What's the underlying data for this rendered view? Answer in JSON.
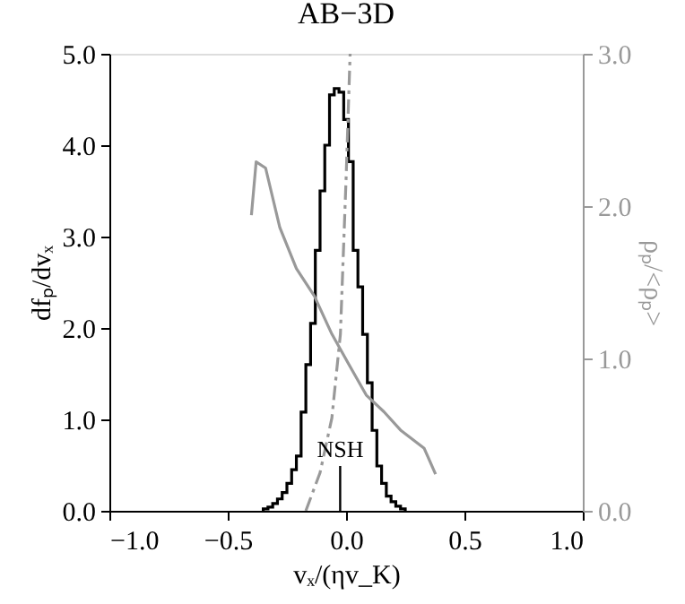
{
  "chart_data": {
    "type": "histogram",
    "title": "AB−3D",
    "xlabel": "vₓ/(ηv_K)",
    "ylabel": "dfₚ/dvₓ",
    "y2label": "ρₚ/<ρₚ>",
    "bins": [
      -0.35,
      -0.33,
      -0.31,
      -0.29,
      -0.27,
      -0.25,
      -0.23,
      -0.21,
      -0.19,
      -0.17,
      -0.15,
      -0.13,
      -0.11,
      -0.09,
      -0.07,
      -0.05,
      -0.03,
      -0.01,
      0.01,
      0.03,
      0.05,
      0.07,
      0.09,
      0.11,
      0.13,
      0.15,
      0.17,
      0.19,
      0.21,
      0.23,
      0.25
    ],
    "values": [
      0.02,
      0.04,
      0.08,
      0.13,
      0.2,
      0.3,
      0.45,
      0.6,
      1.08,
      1.6,
      2.05,
      2.85,
      3.5,
      4.0,
      4.55,
      4.62,
      4.58,
      4.28,
      3.82,
      2.85,
      2.45,
      1.93,
      1.4,
      0.88,
      0.49,
      0.3,
      0.16,
      0.1,
      0.05,
      0.02
    ],
    "color": "#000000",
    "series": [
      {
        "type": "line",
        "axis": "y2",
        "color": "#999999",
        "line_style": "solid",
        "x": [
          -0.4,
          -0.38,
          -0.34,
          -0.28,
          -0.21,
          -0.134,
          -0.06,
          0.012,
          0.085,
          0.16,
          0.23,
          0.33,
          0.378
        ],
        "values": [
          1.94,
          2.29,
          2.25,
          1.86,
          1.59,
          1.41,
          1.16,
          0.96,
          0.76,
          0.65,
          0.53,
          0.41,
          0.24
        ]
      },
      {
        "type": "line",
        "axis": "y2",
        "color": "#999999",
        "line_style": "dashed",
        "x": [
          -0.17,
          -0.11,
          -0.06,
          -0.024,
          0.0,
          0.017
        ],
        "values": [
          0,
          0.25,
          0.61,
          1.16,
          2.18,
          3.0
        ]
      }
    ],
    "ref_lines": [
      {
        "axis": "x",
        "value": -0.025,
        "label": "NSH",
        "color": "#000000"
      }
    ],
    "xlim": [
      -1.0,
      1.0
    ],
    "xticks": [
      {
        "value": -1.0,
        "label": "−1.0"
      },
      {
        "value": -0.5,
        "label": "−0.5"
      },
      {
        "value": 0.0,
        "label": "0.0"
      },
      {
        "value": 0.5,
        "label": "0.5"
      },
      {
        "value": 1.0,
        "label": "1.0"
      }
    ],
    "ylim": [
      0,
      5.0
    ],
    "yticks": [
      {
        "value": 0,
        "label": "0.0"
      },
      {
        "value": 1,
        "label": "1.0"
      },
      {
        "value": 2,
        "label": "2.0"
      },
      {
        "value": 3,
        "label": "3.0"
      },
      {
        "value": 4,
        "label": "4.0"
      },
      {
        "value": 5,
        "label": "5.0"
      }
    ],
    "y2lim": [
      0,
      3.0
    ],
    "y2ticks": [
      {
        "value": 0,
        "label": "0.0"
      },
      {
        "value": 1,
        "label": "1.0"
      },
      {
        "value": 2,
        "label": "2.0"
      },
      {
        "value": 3,
        "label": "3.0"
      }
    ],
    "grid": false
  }
}
